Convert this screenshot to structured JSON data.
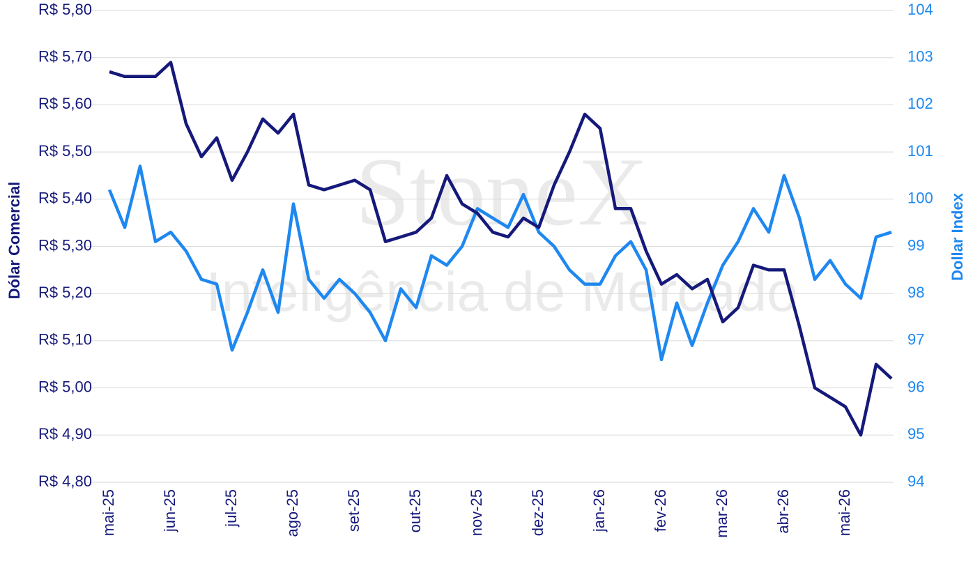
{
  "chart_data": {
    "type": "line",
    "watermark": [
      "StoneX",
      "Inteligência de Mercado"
    ],
    "y_label": "Dólar Comercial",
    "y2_label": "Dollar Index",
    "categories": [
      "mai-25",
      null,
      null,
      null,
      "jun-25",
      null,
      null,
      null,
      "jul-25",
      null,
      null,
      null,
      "ago-25",
      null,
      null,
      null,
      "set-25",
      null,
      null,
      null,
      "out-25",
      null,
      null,
      null,
      "nov-25",
      null,
      null,
      null,
      "dez-25",
      null,
      null,
      null,
      "jan-26",
      null,
      null,
      null,
      "fev-26",
      null,
      null,
      null,
      "mar-26",
      null,
      null,
      null,
      "abr-26",
      null,
      null,
      null,
      "mai-26",
      null,
      null,
      null
    ],
    "series": [
      {
        "name": "Dólar Comercial",
        "color": "#15197a",
        "values": [
          5.67,
          5.66,
          5.66,
          5.66,
          5.69,
          5.56,
          5.49,
          5.53,
          5.44,
          5.5,
          5.57,
          5.54,
          5.58,
          5.43,
          5.42,
          5.43,
          5.44,
          5.42,
          5.31,
          5.32,
          5.33,
          5.36,
          5.45,
          5.39,
          5.37,
          5.33,
          5.32,
          5.36,
          5.34,
          5.43,
          5.5,
          5.58,
          5.55,
          5.38,
          5.38,
          5.29,
          5.22,
          5.24,
          5.21,
          5.23,
          5.14,
          5.17,
          5.26,
          5.25,
          5.25,
          5.13,
          5.0,
          4.98,
          4.96,
          4.9,
          5.05,
          5.02
        ]
      },
      {
        "name": "Dollar Index",
        "color": "#1e88f0",
        "axis": "y2",
        "values": [
          100.2,
          99.4,
          100.7,
          99.1,
          99.3,
          98.9,
          98.3,
          98.2,
          96.8,
          97.6,
          98.5,
          97.6,
          99.9,
          98.3,
          97.9,
          98.3,
          98.0,
          97.6,
          97.0,
          98.1,
          97.7,
          98.8,
          98.6,
          99.0,
          99.8,
          99.6,
          99.4,
          100.1,
          99.3,
          99.0,
          98.5,
          98.2,
          98.2,
          98.8,
          99.1,
          98.5,
          96.6,
          97.8,
          96.9,
          97.8,
          98.6,
          99.1,
          99.8,
          99.3,
          100.5,
          99.6,
          98.3,
          98.7,
          98.2,
          97.9,
          99.2,
          99.3
        ]
      }
    ],
    "ylim": [
      4.8,
      5.8
    ],
    "yticks": [
      {
        "value": 4.8,
        "label": "R$ 4,80"
      },
      {
        "value": 4.9,
        "label": "R$ 4,90"
      },
      {
        "value": 5.0,
        "label": "R$ 5,00"
      },
      {
        "value": 5.1,
        "label": "R$ 5,10"
      },
      {
        "value": 5.2,
        "label": "R$ 5,20"
      },
      {
        "value": 5.3,
        "label": "R$ 5,30"
      },
      {
        "value": 5.4,
        "label": "R$ 5,40"
      },
      {
        "value": 5.5,
        "label": "R$ 5,50"
      },
      {
        "value": 5.6,
        "label": "R$ 5,60"
      },
      {
        "value": 5.7,
        "label": "R$ 5,70"
      },
      {
        "value": 5.8,
        "label": "R$ 5,80"
      }
    ],
    "y2lim": [
      94,
      104
    ],
    "y2ticks": [
      94,
      95,
      96,
      97,
      98,
      99,
      100,
      101,
      102,
      103,
      104
    ],
    "grid": true
  }
}
